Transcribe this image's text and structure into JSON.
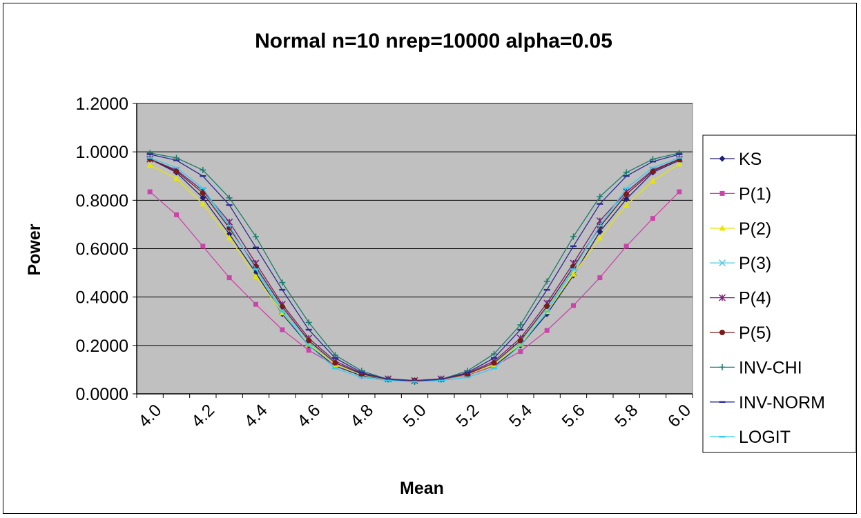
{
  "chart_data": {
    "type": "line",
    "title": "Normal n=10 nrep=10000 alpha=0.05",
    "xlabel": "Mean",
    "ylabel": "Power",
    "categories": [
      "4.0",
      "4.1",
      "4.2",
      "4.3",
      "4.4",
      "4.5",
      "4.6",
      "4.7",
      "4.8",
      "4.9",
      "5.0",
      "5.1",
      "5.2",
      "5.3",
      "5.4",
      "5.5",
      "5.6",
      "5.7",
      "5.8",
      "5.9",
      "6.0"
    ],
    "x_tick_labels": [
      "4.0",
      "4.2",
      "4.4",
      "4.6",
      "4.8",
      "5.0",
      "5.2",
      "5.4",
      "5.6",
      "5.8",
      "6.0"
    ],
    "y_tick_labels": [
      "0.0000",
      "0.2000",
      "0.4000",
      "0.6000",
      "0.8000",
      "1.0000",
      "1.2000"
    ],
    "ylim": [
      0,
      1.2
    ],
    "grid": true,
    "legend_position": "right",
    "plot_background": "#c0c0c0",
    "series": [
      {
        "name": "KS",
        "color": "#1f1f7a",
        "marker": "diamond",
        "values": [
          0.97,
          0.915,
          0.81,
          0.66,
          0.5,
          0.33,
          0.2,
          0.115,
          0.075,
          0.06,
          0.055,
          0.06,
          0.078,
          0.115,
          0.2,
          0.33,
          0.49,
          0.67,
          0.805,
          0.915,
          0.965
        ]
      },
      {
        "name": "P(1)",
        "color": "#cc44aa",
        "marker": "square",
        "values": [
          0.835,
          0.74,
          0.61,
          0.48,
          0.37,
          0.265,
          0.18,
          0.118,
          0.08,
          0.06,
          0.055,
          0.06,
          0.078,
          0.115,
          0.175,
          0.262,
          0.365,
          0.48,
          0.61,
          0.725,
          0.835
        ]
      },
      {
        "name": "P(2)",
        "color": "#e6e600",
        "marker": "triangle",
        "values": [
          0.945,
          0.89,
          0.785,
          0.645,
          0.485,
          0.335,
          0.205,
          0.12,
          0.078,
          0.06,
          0.055,
          0.06,
          0.08,
          0.12,
          0.205,
          0.34,
          0.495,
          0.645,
          0.78,
          0.88,
          0.95
        ]
      },
      {
        "name": "P(3)",
        "color": "#55ccdd",
        "marker": "x",
        "values": [
          0.97,
          0.925,
          0.84,
          0.69,
          0.52,
          0.35,
          0.215,
          0.125,
          0.08,
          0.06,
          0.055,
          0.06,
          0.082,
          0.125,
          0.215,
          0.355,
          0.52,
          0.69,
          0.835,
          0.925,
          0.97
        ]
      },
      {
        "name": "P(4)",
        "color": "#7a1f7a",
        "marker": "star",
        "values": [
          0.97,
          0.925,
          0.84,
          0.71,
          0.54,
          0.37,
          0.23,
          0.135,
          0.085,
          0.062,
          0.055,
          0.062,
          0.085,
          0.135,
          0.23,
          0.375,
          0.54,
          0.715,
          0.835,
          0.925,
          0.97
        ]
      },
      {
        "name": "P(5)",
        "color": "#7a1a1a",
        "marker": "circle",
        "values": [
          0.97,
          0.92,
          0.83,
          0.685,
          0.525,
          0.36,
          0.22,
          0.128,
          0.082,
          0.06,
          0.055,
          0.06,
          0.082,
          0.128,
          0.22,
          0.362,
          0.525,
          0.69,
          0.825,
          0.92,
          0.97
        ]
      },
      {
        "name": "INV-CHI",
        "color": "#1a7a6a",
        "marker": "plus",
        "values": [
          0.995,
          0.975,
          0.925,
          0.81,
          0.65,
          0.46,
          0.295,
          0.16,
          0.095,
          0.06,
          0.05,
          0.06,
          0.095,
          0.165,
          0.285,
          0.465,
          0.65,
          0.815,
          0.915,
          0.97,
          0.995
        ]
      },
      {
        "name": "INV-NORM",
        "color": "#2b2b9a",
        "marker": "dash",
        "values": [
          0.99,
          0.965,
          0.9,
          0.78,
          0.605,
          0.43,
          0.265,
          0.148,
          0.088,
          0.06,
          0.052,
          0.06,
          0.088,
          0.148,
          0.265,
          0.43,
          0.61,
          0.785,
          0.9,
          0.96,
          0.99
        ]
      },
      {
        "name": "LOGIT",
        "color": "#33ccee",
        "marker": "dash",
        "values": [
          0.975,
          0.935,
          0.85,
          0.695,
          0.515,
          0.34,
          0.2,
          0.105,
          0.068,
          0.055,
          0.05,
          0.055,
          0.068,
          0.105,
          0.2,
          0.34,
          0.515,
          0.695,
          0.85,
          0.935,
          0.975
        ]
      }
    ]
  }
}
